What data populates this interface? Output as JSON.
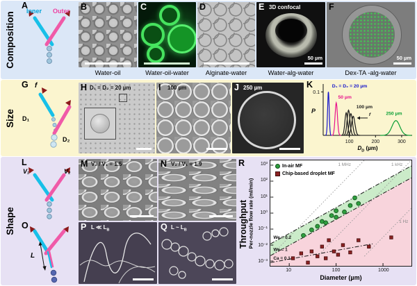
{
  "figure": {
    "bands": [
      {
        "id": "composition",
        "label": "Composition"
      },
      {
        "id": "size",
        "label": "Size"
      },
      {
        "id": "shape",
        "label": "Shape"
      }
    ],
    "throughput_label": "Throughput"
  },
  "panels": {
    "A": {
      "letter": "A",
      "inner_label": "Inner",
      "outer_label": "Outer"
    },
    "B": {
      "letter": "B",
      "caption": "Water-oil"
    },
    "C": {
      "letter": "C",
      "caption": "Water-oil-water"
    },
    "D": {
      "letter": "D",
      "caption": "Alginate-water"
    },
    "E": {
      "letter": "E",
      "title": "3D confocal",
      "scale_label": "50 µm",
      "caption": "Water-alg-water"
    },
    "F": {
      "letter": "F",
      "scale_label": "50 µm",
      "caption": "Dex-TA -alg-water"
    },
    "G": {
      "letter": "G",
      "f_label": "f",
      "d1_label": "D₁",
      "d2_label": "D₂"
    },
    "H": {
      "letter": "H",
      "title": "D₁ = D₂ = 20 µm"
    },
    "I": {
      "letter": "I",
      "title": "100 µm"
    },
    "J": {
      "letter": "J",
      "title": "250 µm"
    },
    "K": {
      "letter": "K"
    },
    "L": {
      "letter": "L",
      "v1_label": "V₁",
      "v2_label": "V₂"
    },
    "M": {
      "letter": "M",
      "title": "V₂ / V₁ = 1.5"
    },
    "N": {
      "letter": "N",
      "title": "V₂ / V₁ = 1.9"
    },
    "O": {
      "letter": "O",
      "l_label": "L"
    },
    "P": {
      "letter": "P",
      "title_main": "L ≪ L",
      "title_sub": "B"
    },
    "Q": {
      "letter": "Q",
      "title_main": "L ~ L",
      "title_sub": "B"
    },
    "R": {
      "letter": "R"
    }
  },
  "chart_data": [
    {
      "id": "size_distribution",
      "panel": "K",
      "type": "line",
      "xlabel": "D_D (µm)",
      "xlabel_main": "D",
      "xlabel_sub": "D",
      "xlabel_unit": "(µm)",
      "ylabel": "P",
      "ytick": "0.1",
      "xticks": [
        100,
        200,
        300
      ],
      "xlim": [
        0,
        340
      ],
      "ylim": [
        0,
        0.115
      ],
      "series": [
        {
          "name": "D1 = D2 = 20 µm",
          "color": "#1515cc",
          "mu": 20,
          "sigma": 3,
          "peak": 0.1
        },
        {
          "name": "50 µm",
          "color": "#e8128c",
          "mu": 50,
          "sigma": 4.5,
          "peak": 0.075
        },
        {
          "name": "100 µm (f varied)",
          "color": "#1a1a1a",
          "mu": 88,
          "sigma": 5,
          "peak": 0.052
        },
        {
          "name": "100 µm (f varied)",
          "color": "#1a1a1a",
          "mu": 97,
          "sigma": 5.5,
          "peak": 0.058
        },
        {
          "name": "100 µm (f varied)",
          "color": "#1a1a1a",
          "mu": 106,
          "sigma": 6,
          "peak": 0.05
        },
        {
          "name": "100 µm (f varied)",
          "color": "#1a1a1a",
          "mu": 115,
          "sigma": 6.5,
          "peak": 0.044
        },
        {
          "name": "250 µm",
          "color": "#0a9f35",
          "mu": 278,
          "sigma": 15,
          "peak": 0.034
        }
      ],
      "annotations": [
        {
          "text": "D₁ = D₂ = 20 µm",
          "color": "#1515cc",
          "x": 34,
          "y": 0.11
        },
        {
          "text": "50 µm",
          "color": "#e8128c",
          "x": 57,
          "y": 0.085
        },
        {
          "text": "100 µm",
          "color": "#1a1a1a",
          "x": 127,
          "y": 0.062
        },
        {
          "text": "250 µm",
          "color": "#0a9f35",
          "x": 240,
          "y": 0.047
        },
        {
          "text": "f",
          "color": "#1a1a1a",
          "x": 175,
          "y": 0.045,
          "italic": true
        }
      ],
      "f_arrow": {
        "from": [
          170,
          0.04
        ],
        "to": [
          130,
          0.04
        ]
      }
    },
    {
      "id": "throughput",
      "panel": "R",
      "type": "scatter",
      "xlabel": "Diameter (µm)",
      "ylabel": "Per-nozzle flow rate (ml/min)",
      "xscale": "log",
      "yscale": "log",
      "xlim": [
        4,
        4000
      ],
      "ylim": [
        0.0005,
        2000
      ],
      "xticks": [
        "10",
        "100",
        "1000"
      ],
      "xtick_values": [
        10,
        100,
        1000
      ],
      "yticks": [
        "10³",
        "10²",
        "10¹",
        "10⁰",
        "10⁻¹",
        "10⁻²",
        "10⁻³"
      ],
      "ytick_values": [
        1000,
        100,
        10,
        1,
        0.1,
        0.01,
        0.001
      ],
      "legend": [
        {
          "label": "In-air MF",
          "marker": "circle",
          "color": "#2e9e3e"
        },
        {
          "label": "Chip-based droplet MF",
          "marker": "square",
          "color": "#8b2222"
        }
      ],
      "series": [
        {
          "name": "In-air MF",
          "marker": "circle",
          "color": "#2e9e3e",
          "points": [
            [
              20,
              0.04
            ],
            [
              30,
              0.09
            ],
            [
              40,
              0.15
            ],
            [
              50,
              0.3
            ],
            [
              60,
              0.25
            ],
            [
              80,
              0.7
            ],
            [
              100,
              0.55
            ],
            [
              100,
              1.4
            ],
            [
              150,
              1.2
            ],
            [
              200,
              3
            ],
            [
              250,
              9
            ],
            [
              300,
              4
            ]
          ]
        },
        {
          "name": "Chip-based droplet MF",
          "marker": "square",
          "color": "#8b2222",
          "points": [
            [
              12,
              0.0015
            ],
            [
              18,
              0.003
            ],
            [
              25,
              0.0008
            ],
            [
              30,
              0.004
            ],
            [
              40,
              0.002
            ],
            [
              50,
              0.008
            ],
            [
              60,
              0.0015
            ],
            [
              70,
              0.02
            ],
            [
              90,
              0.004
            ],
            [
              110,
              0.0025
            ],
            [
              140,
              0.01
            ],
            [
              200,
              0.0035
            ],
            [
              300,
              0.02
            ],
            [
              500,
              0.008
            ],
            [
              1500,
              0.03
            ]
          ]
        }
      ],
      "guide_lines": [
        {
          "label": "1 MHz",
          "style": "dotted",
          "color": "#9a9a9a",
          "from": [
            5,
            0.004
          ],
          "to": [
            500,
            4000
          ],
          "label_at": [
            110,
            900
          ]
        },
        {
          "label": "1 kHz",
          "style": "dotted",
          "color": "#9a9a9a",
          "from": [
            40,
            0.002
          ],
          "to": [
            4000,
            2000
          ],
          "label_at": [
            1500,
            900
          ]
        },
        {
          "label": "1 Hz",
          "style": "dotted",
          "color": "#9a9a9a",
          "from": [
            400,
            0.002
          ],
          "to": [
            4000,
            2.0
          ],
          "label_at": [
            2200,
            0.25
          ]
        },
        {
          "label": "We = 0.2",
          "style": "dashdot",
          "color": "#1a1a1a",
          "from": [
            4,
            0.012
          ],
          "to": [
            4000,
            900
          ],
          "label_at": [
            4.6,
            0.025
          ]
        },
        {
          "label": "We = 1",
          "style": "dashdot",
          "color": "#1a1a1a",
          "from": [
            4,
            0.0022
          ],
          "to": [
            4000,
            160
          ],
          "label_at": [
            4.6,
            0.0042
          ]
        },
        {
          "label": "Ca = 0.1",
          "style": "dashdot",
          "color": "#1a1a1a",
          "from": [
            4,
            0.0008
          ],
          "to": [
            600,
            0.012
          ],
          "label_at": [
            4.6,
            0.0012
          ]
        }
      ],
      "regions": [
        {
          "name": "in-air-mf-band",
          "fill": "#c2e8c0",
          "between": [
            "We = 0.2",
            "We = 1"
          ]
        },
        {
          "name": "chip-based-region",
          "fill": "#f7ccd6",
          "below": "We = 1"
        }
      ]
    }
  ]
}
